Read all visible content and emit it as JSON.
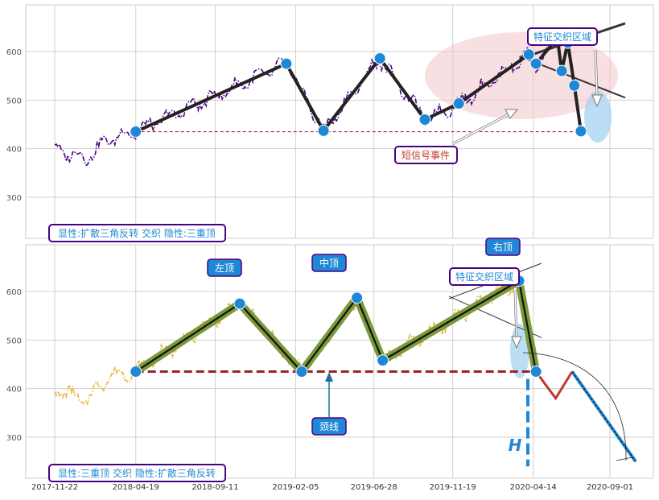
{
  "chart_data": [
    {
      "type": "line",
      "panel": "top",
      "ylim": [
        210,
        690
      ],
      "yticks": [
        300,
        400,
        500,
        600
      ],
      "grid": true,
      "colors": {
        "price": "#4b0082",
        "pattern": "#222222",
        "marker": "#1e88d6",
        "neckline": "#c8202a",
        "zone": "#f3c5c8",
        "box_edge": "#4b0082",
        "box_text": "#1e88d6"
      },
      "pattern_points": [
        {
          "x": "2018-04-19",
          "y": 435
        },
        {
          "x": "2019-01-19",
          "y": 575
        },
        {
          "x": "2019-03-28",
          "y": 437
        },
        {
          "x": "2019-07-09",
          "y": 586
        },
        {
          "x": "2019-09-29",
          "y": 460
        },
        {
          "x": "2019-11-30",
          "y": 493
        },
        {
          "x": "2020-04-06",
          "y": 594
        },
        {
          "x": "2020-04-19",
          "y": 575
        },
        {
          "x": "2020-05-28",
          "y": 628
        },
        {
          "x": "2020-06-05",
          "y": 560
        },
        {
          "x": "2020-06-16",
          "y": 618
        },
        {
          "x": "2020-06-28",
          "y": 530
        },
        {
          "x": "2020-07-10",
          "y": 436
        }
      ],
      "neckline": {
        "y": 435,
        "x_start": "2018-04-19",
        "x_end": "2020-07-10"
      },
      "annotations": {
        "zone_label": "特征交织区域",
        "short_signal_label": "短信号事件",
        "pattern_label": "显性:扩散三角反转 交织 隐性:三重顶"
      }
    },
    {
      "type": "line",
      "panel": "bottom",
      "ylim": [
        210,
        690
      ],
      "yticks": [
        300,
        400,
        500,
        600
      ],
      "xticks": [
        "2017-11-22",
        "2018-04-19",
        "2018-09-11",
        "2019-02-05",
        "2019-06-28",
        "2019-11-19",
        "2020-04-14",
        "2020-09-01"
      ],
      "grid": true,
      "colors": {
        "price": "#e8b53a",
        "pattern": "#7a9a3a",
        "marker": "#1e88d6",
        "neckline": "#9b2226",
        "target": "#1e88d6",
        "drop": "#c0392b",
        "box_fill": "#1e88d6",
        "box_edge": "#4b0082"
      },
      "pattern_points": [
        {
          "x": "2018-04-19",
          "y": 435
        },
        {
          "x": "2018-10-26",
          "y": 575
        },
        {
          "x": "2019-02-16",
          "y": 435
        },
        {
          "x": "2019-05-28",
          "y": 587
        },
        {
          "x": "2019-07-14",
          "y": 458
        },
        {
          "x": "2020-03-19",
          "y": 622
        },
        {
          "x": "2020-04-19",
          "y": 435
        }
      ],
      "projection": [
        {
          "x": "2020-04-19",
          "y": 435
        },
        {
          "x": "2020-05-25",
          "y": 380
        },
        {
          "x": "2020-06-24",
          "y": 435
        },
        {
          "x": "2020-10-18",
          "y": 250
        }
      ],
      "neckline": {
        "y": 435,
        "x_start": "2018-04-19",
        "x_end": "2020-04-19"
      },
      "annotations": {
        "left_top": "左顶",
        "middle_top": "中顶",
        "right_top": "右顶",
        "neck_label": "颈线",
        "zone_label": "特征交织区域",
        "height_label": "H",
        "pattern_label": "显性:三重顶 交织 隐性:扩散三角反转"
      }
    }
  ]
}
